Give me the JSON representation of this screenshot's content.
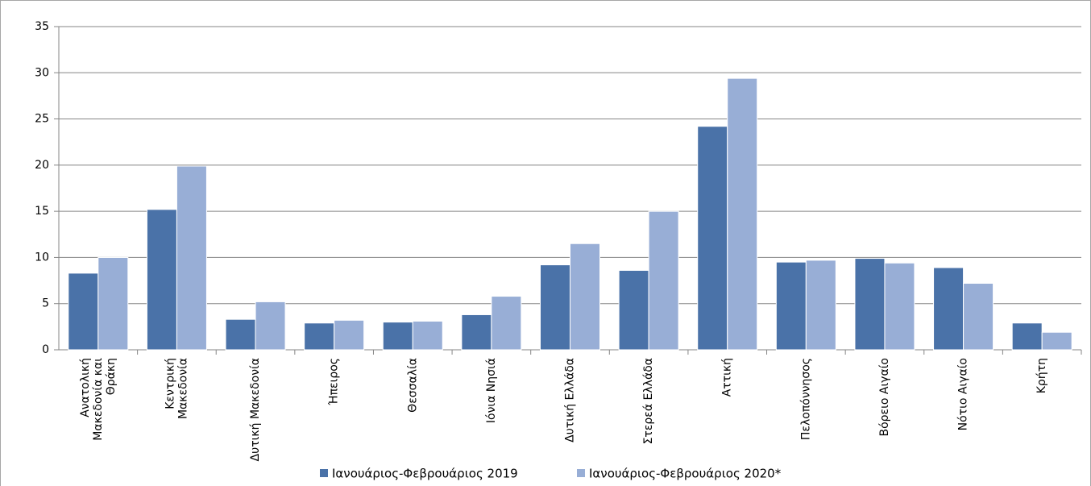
{
  "chart_data": {
    "type": "bar",
    "categories": [
      "Ανατολική Μακεδονία και Θράκη",
      "Κεντρική Μακεδονία",
      "Δυτική Μακεδονία",
      "Ήπειρος",
      "Θεσσαλία",
      "Ιόνια Νησιά",
      "Δυτική Ελλάδα",
      "Στερεά Ελλάδα",
      "Αττική",
      "Πελοπόννησος",
      "Βόρειο Αιγαίο",
      "Νότιο Αιγαίο",
      "Κρήτη"
    ],
    "series": [
      {
        "name": "Ιανουάριος-Φεβρουάριος 2019",
        "color": "#4a72a8",
        "values": [
          8.3,
          15.2,
          3.3,
          2.9,
          3.0,
          3.8,
          9.2,
          8.6,
          24.2,
          9.5,
          9.9,
          8.9,
          2.9
        ]
      },
      {
        "name": "Ιανουάριος-Φεβρουάριος 2020*",
        "color": "#98aed6",
        "values": [
          10.0,
          19.9,
          5.2,
          3.2,
          3.1,
          5.8,
          11.5,
          15.0,
          29.4,
          9.7,
          9.4,
          7.2,
          1.9
        ]
      }
    ],
    "ylim": [
      0,
      35
    ],
    "yticks": [
      0,
      5,
      10,
      15,
      20,
      25,
      30,
      35
    ],
    "grid": true,
    "legend": "bottom"
  }
}
